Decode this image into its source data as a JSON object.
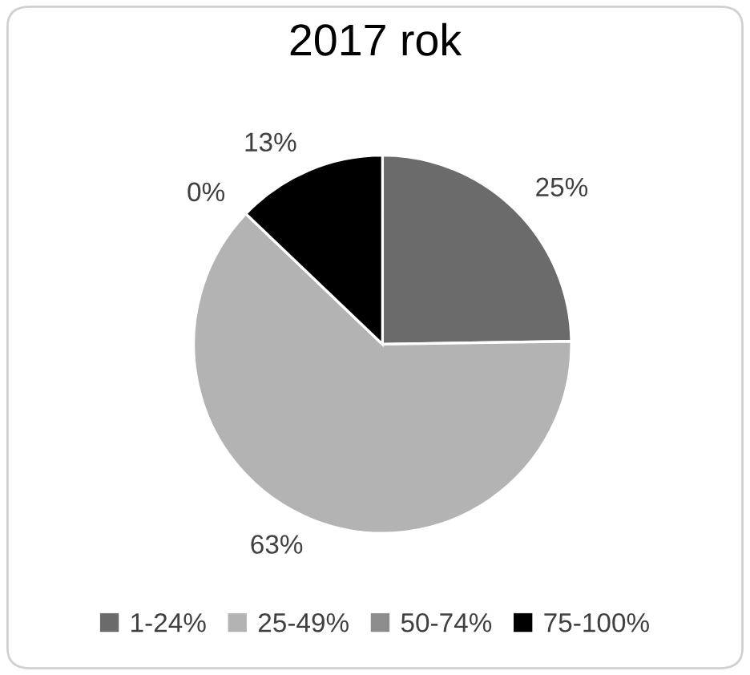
{
  "chart_data": {
    "type": "pie",
    "title": "2017 rok",
    "categories": [
      "1-24%",
      "25-49%",
      "50-74%",
      "75-100%"
    ],
    "values": [
      25,
      63,
      0,
      13
    ],
    "colors": [
      "#6b6b6b",
      "#b3b3b3",
      "#8c8c8c",
      "#000000"
    ],
    "value_labels": [
      "25%",
      "63%",
      "0%",
      "13%"
    ],
    "legend": "bottom"
  }
}
